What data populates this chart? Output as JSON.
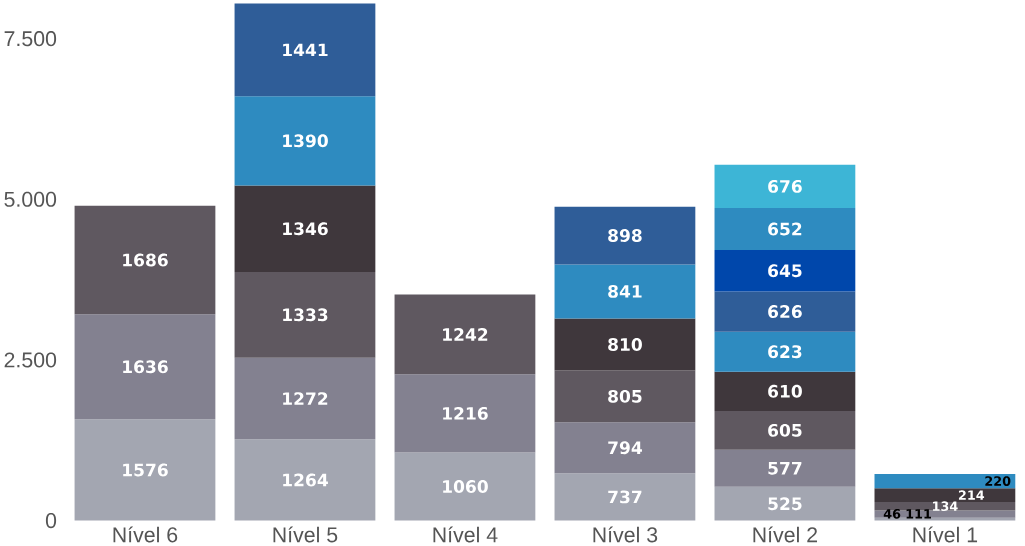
{
  "chart_data": {
    "type": "bar",
    "stacked": true,
    "data_labels": true,
    "categories": [
      "Nível 6",
      "Nível 5",
      "Nível 4",
      "Nível 3",
      "Nível 2",
      "Nível 1"
    ],
    "ylim": [
      0,
      8100
    ],
    "yticks": [
      0,
      {
        "value": 2500,
        "label": "2.500"
      },
      {
        "value": 5000,
        "label": "5.000"
      },
      {
        "value": 7500,
        "label": "7.500"
      }
    ],
    "grid": false,
    "series": [
      {
        "color": "#a3a6b1",
        "values": [
          1576,
          1264,
          1060,
          737,
          525,
          46
        ]
      },
      {
        "color": "#838190",
        "values": [
          1636,
          1272,
          1216,
          794,
          577,
          111
        ]
      },
      {
        "color": "#5f5860",
        "values": [
          1686,
          1333,
          1242,
          805,
          605,
          134
        ]
      },
      {
        "color": "#3f373c",
        "values": [
          null,
          1346,
          null,
          810,
          610,
          214
        ]
      },
      {
        "color": "#2e8bc0",
        "values": [
          null,
          1390,
          null,
          841,
          623,
          220
        ]
      },
      {
        "color": "#2f5d98",
        "values": [
          null,
          1441,
          null,
          898,
          626,
          null
        ]
      },
      {
        "color": "#0047ab",
        "values": [
          null,
          null,
          null,
          null,
          645,
          null
        ]
      },
      {
        "color": "#2e8bc0",
        "values": [
          null,
          null,
          null,
          null,
          652,
          null
        ]
      },
      {
        "color": "#3db5d6",
        "values": [
          null,
          null,
          null,
          null,
          676,
          null
        ]
      }
    ]
  }
}
